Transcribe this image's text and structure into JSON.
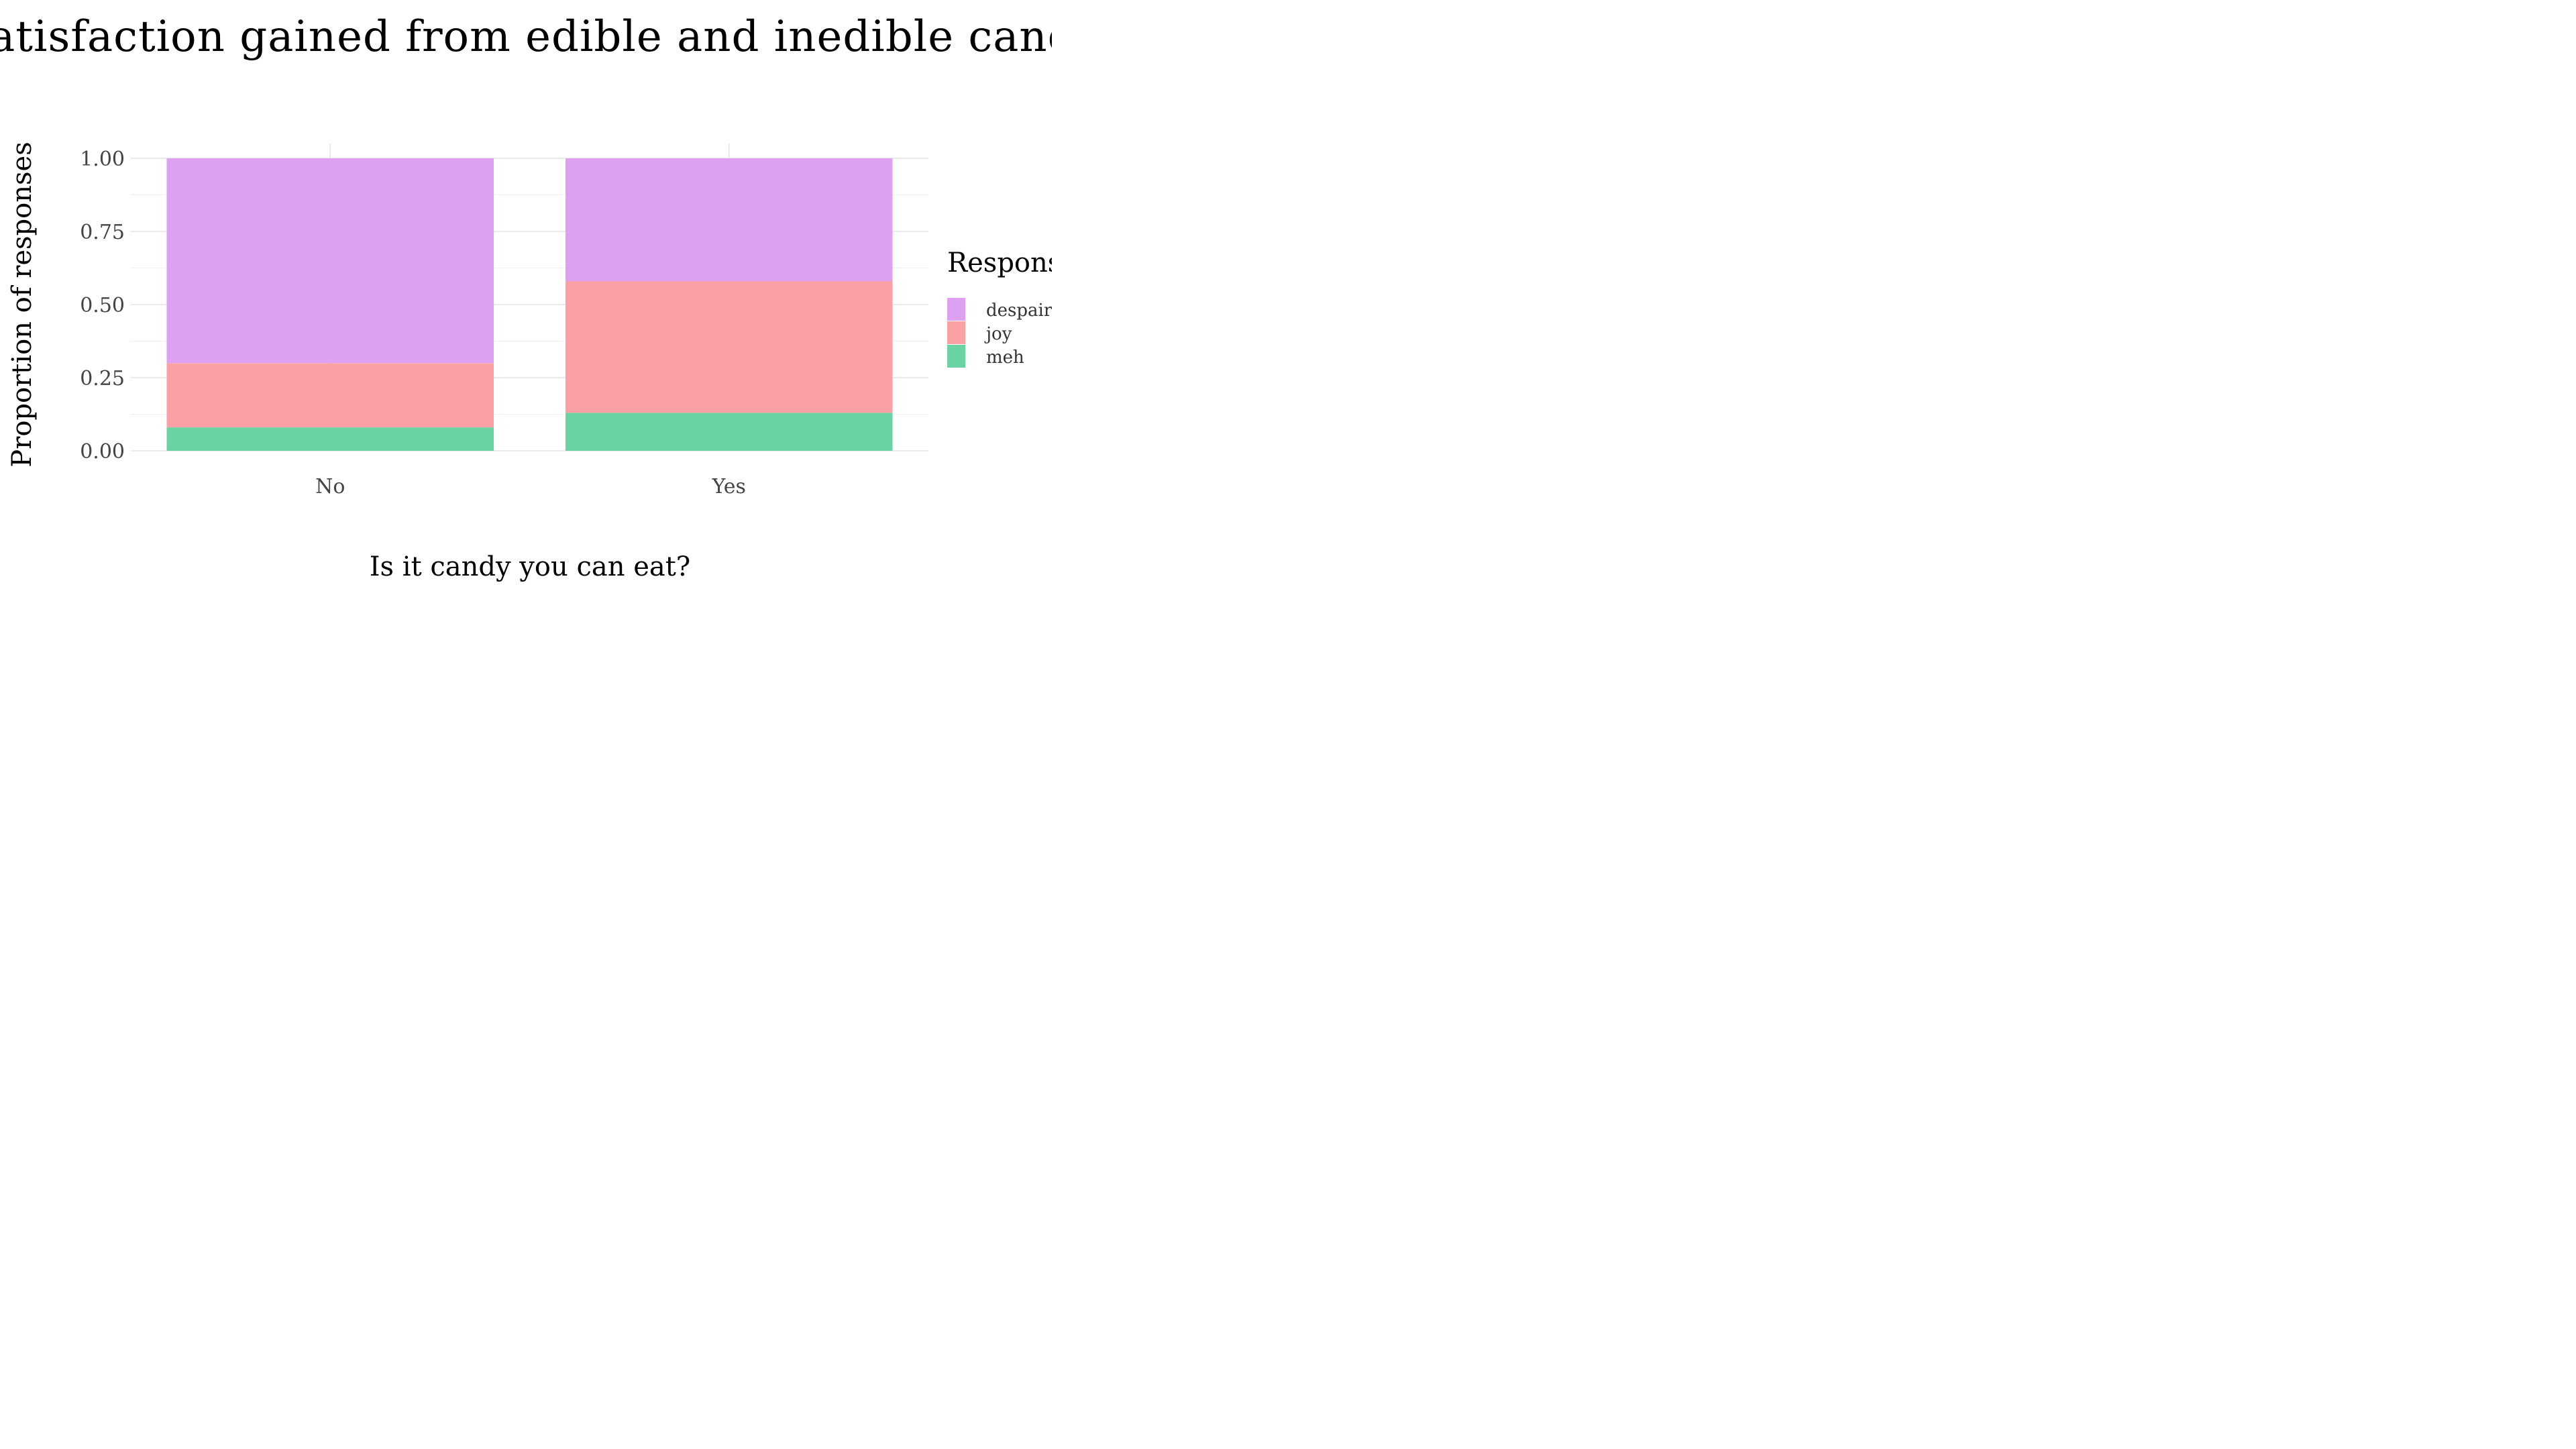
{
  "chart_data": {
    "type": "bar",
    "stacked": true,
    "title": "Satisfaction gained from edible and inedible candy",
    "xlabel": "Is it candy you can eat?",
    "ylabel": "Proportion of responses",
    "categories": [
      "No",
      "Yes"
    ],
    "ylim": [
      0,
      1
    ],
    "y_ticks": [
      "0.00",
      "0.25",
      "0.50",
      "0.75",
      "1.00"
    ],
    "grid": true,
    "legend": {
      "title": "Response",
      "placement": "right"
    },
    "series": [
      {
        "name": "despair",
        "color": "#dea1f2",
        "values": [
          0.7,
          0.42
        ]
      },
      {
        "name": "joy",
        "color": "#fba1a6",
        "values": [
          0.22,
          0.45
        ]
      },
      {
        "name": "meh",
        "color": "#69d3a3",
        "values": [
          0.08,
          0.13
        ]
      }
    ]
  }
}
